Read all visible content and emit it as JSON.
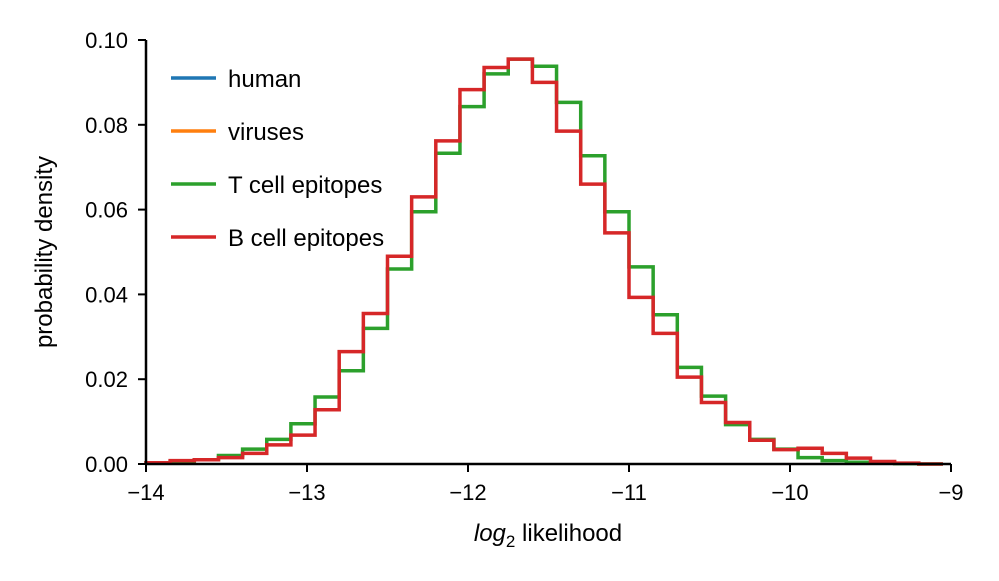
{
  "chart_data": {
    "type": "line",
    "style": "step-histogram",
    "xlabel_italic": "log",
    "xlabel_sub": "2",
    "xlabel_rest": " likelihood",
    "ylabel": "probability density",
    "xlim": [
      -14,
      -9
    ],
    "ylim": [
      0,
      0.1
    ],
    "x_ticks": [
      -14,
      -13,
      -12,
      -11,
      -10,
      -9
    ],
    "x_tick_labels": [
      "−14",
      "−13",
      "−12",
      "−11",
      "−10",
      "−9"
    ],
    "y_ticks": [
      0,
      0.02,
      0.04,
      0.06,
      0.08,
      0.1
    ],
    "y_tick_labels": [
      "0.00",
      "0.02",
      "0.04",
      "0.06",
      "0.08",
      "0.10"
    ],
    "grid": false,
    "legend_position": "top-left",
    "bin_edges": [
      -14.0,
      -13.85,
      -13.7,
      -13.55,
      -13.4,
      -13.25,
      -13.1,
      -12.95,
      -12.8,
      -12.65,
      -12.5,
      -12.35,
      -12.2,
      -12.05,
      -11.9,
      -11.75,
      -11.6,
      -11.45,
      -11.3,
      -11.15,
      -11.0,
      -10.85,
      -10.7,
      -10.55,
      -10.4,
      -10.25,
      -10.1,
      -9.95,
      -9.8,
      -9.65,
      -9.5,
      -9.35,
      -9.2,
      -9.05
    ],
    "series": [
      {
        "name": "human",
        "color": "#1f77b4",
        "values": []
      },
      {
        "name": "viruses",
        "color": "#ff7f0e",
        "values": []
      },
      {
        "name": "T cell epitopes",
        "color": "#2ca02c",
        "values": [
          0.0003,
          0.0005,
          0.001,
          0.002,
          0.0035,
          0.0058,
          0.0095,
          0.0158,
          0.022,
          0.032,
          0.046,
          0.0595,
          0.0733,
          0.0843,
          0.092,
          0.0955,
          0.0938,
          0.0853,
          0.0727,
          0.0595,
          0.0465,
          0.0352,
          0.0228,
          0.016,
          0.0093,
          0.0058,
          0.0035,
          0.0015,
          0.0008,
          0.0004,
          0.0002,
          0.0001,
          0.0
        ]
      },
      {
        "name": "B cell epitopes",
        "color": "#d62728",
        "values": [
          0.0003,
          0.0008,
          0.001,
          0.0015,
          0.0025,
          0.0045,
          0.0068,
          0.0128,
          0.0265,
          0.0355,
          0.049,
          0.063,
          0.0762,
          0.0883,
          0.0935,
          0.0955,
          0.09,
          0.0785,
          0.066,
          0.0545,
          0.0393,
          0.0308,
          0.0205,
          0.0145,
          0.0098,
          0.0056,
          0.0034,
          0.0037,
          0.0025,
          0.0014,
          0.0006,
          0.0002,
          0.0
        ]
      }
    ]
  }
}
